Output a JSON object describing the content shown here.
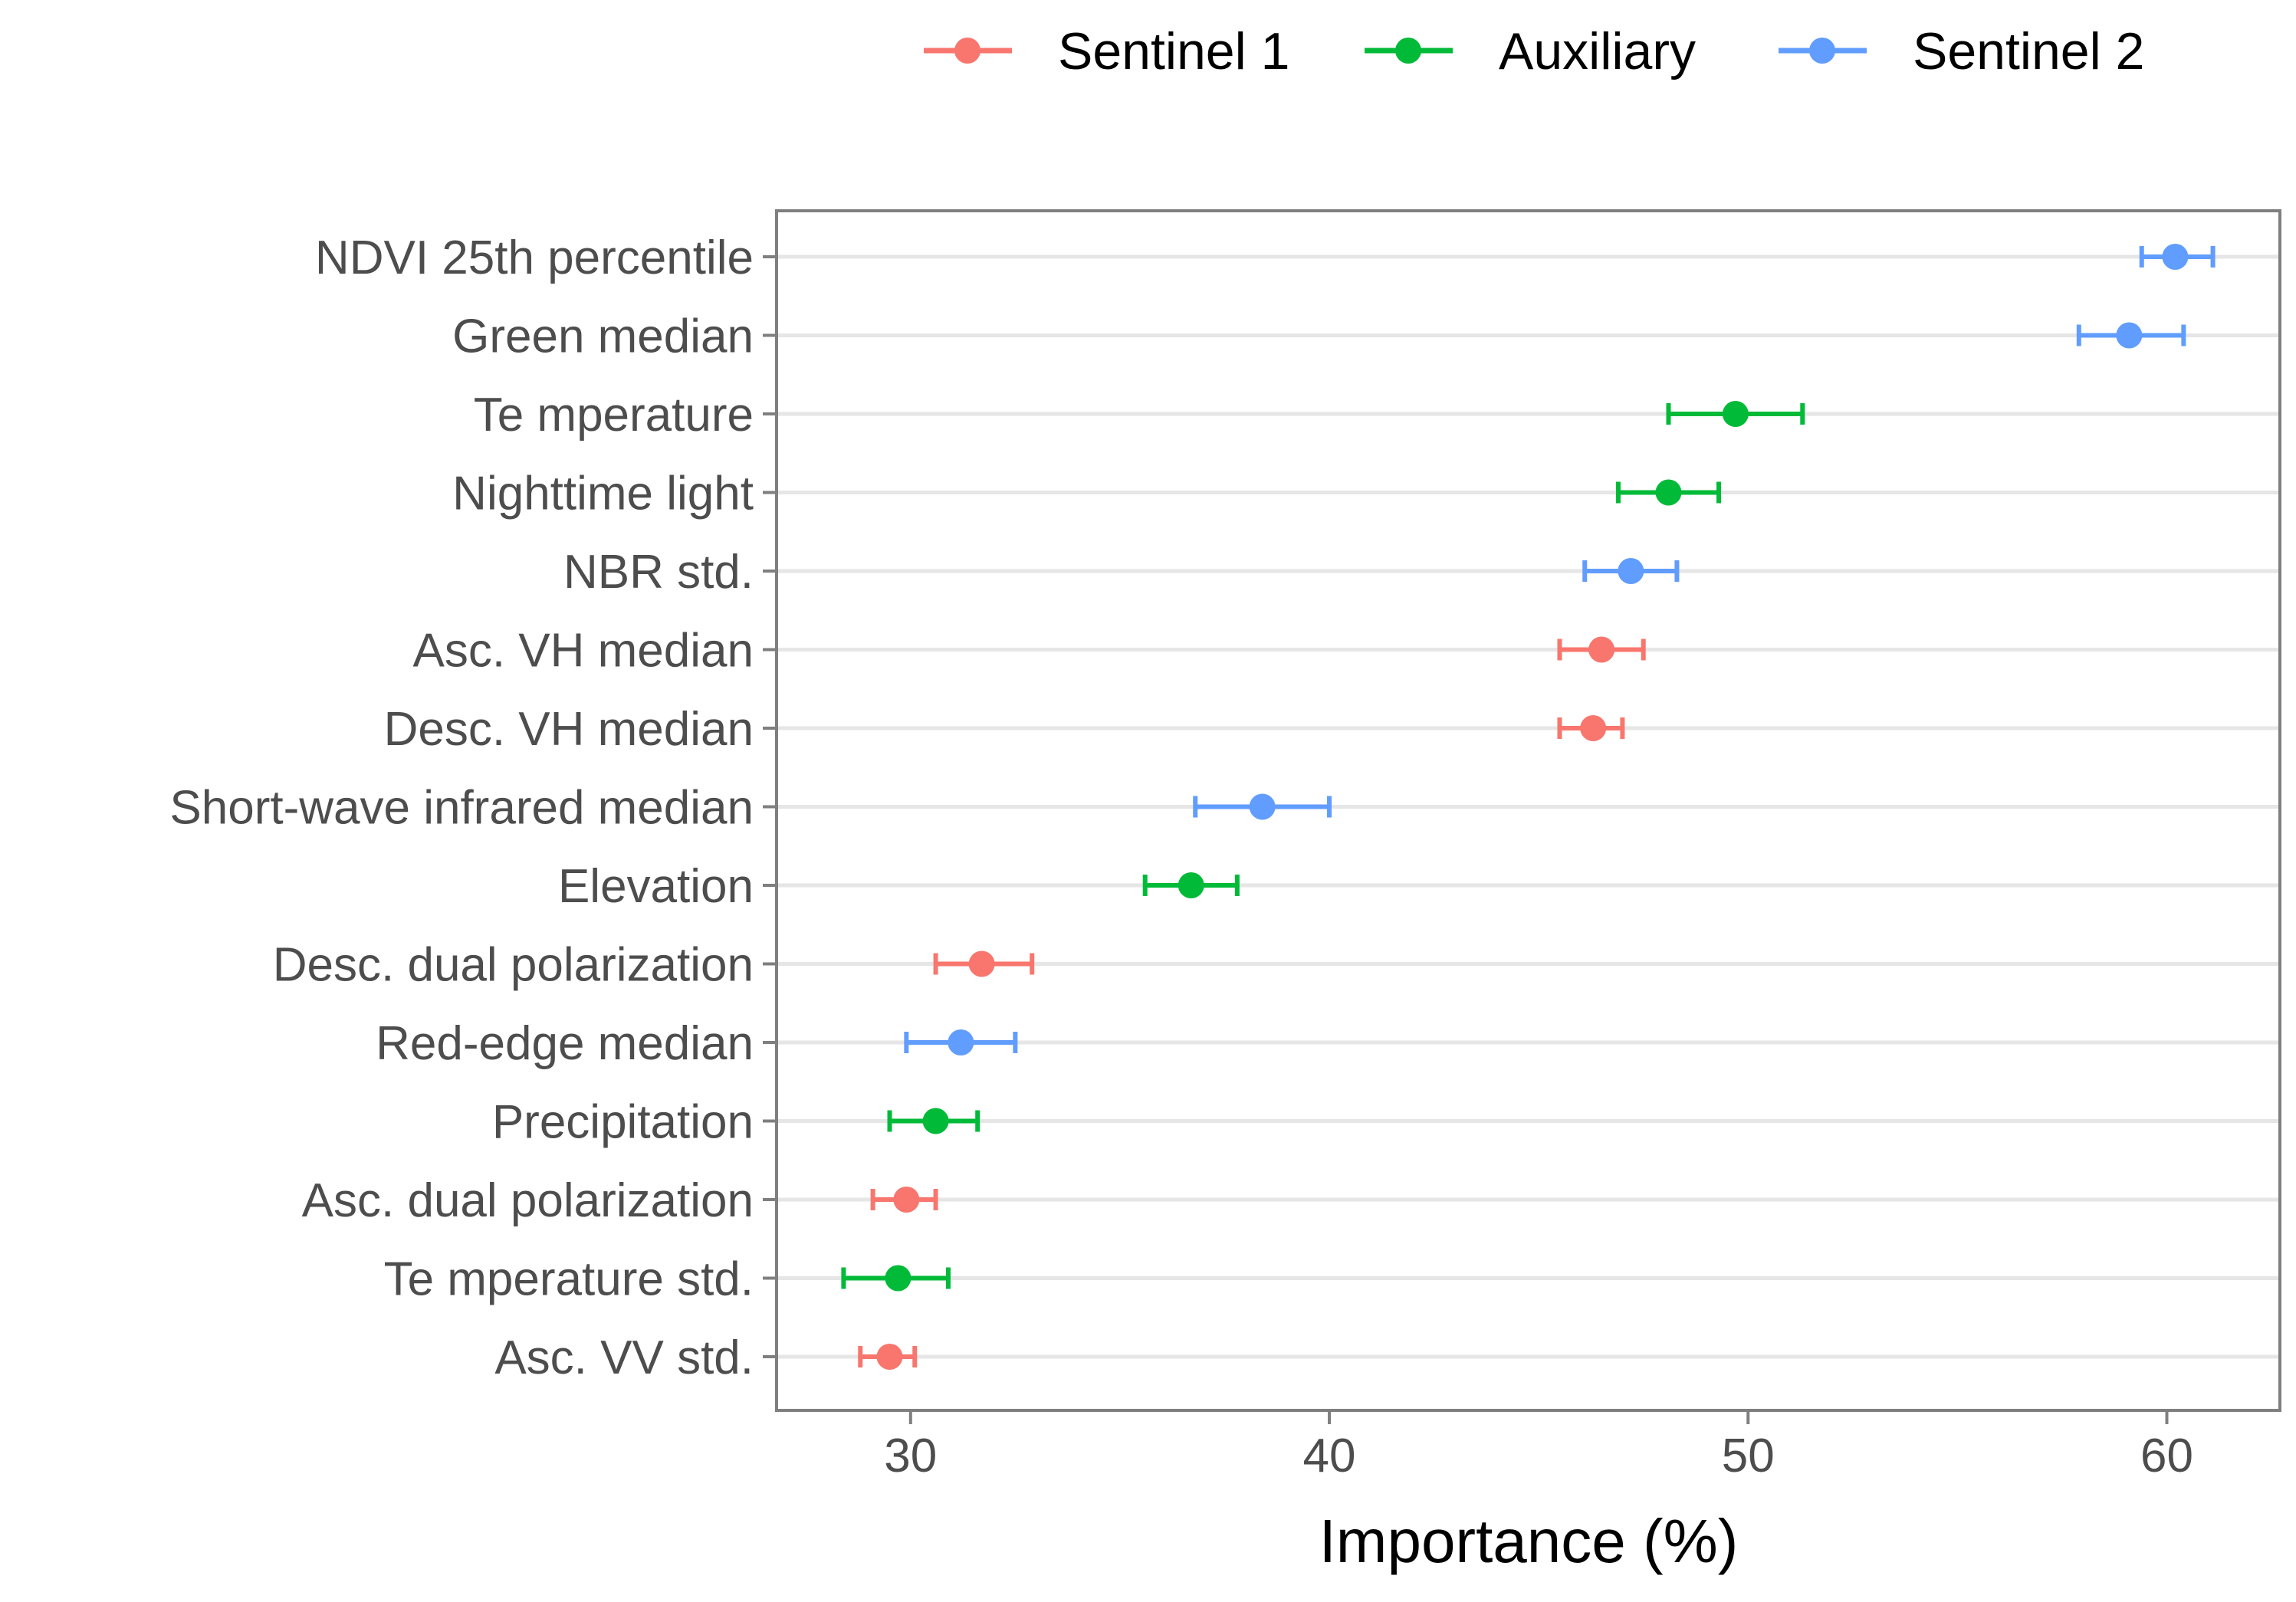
{
  "colors": {
    "Sentinel 1": "#F8766D",
    "Auxiliary": "#00BA38",
    "Sentinel 2": "#619CFF",
    "grid": "#e6e6e6",
    "panel_border": "#7f7f7f",
    "text": "#4d4d4d",
    "title_text": "#000000"
  },
  "chart_data": {
    "type": "dot-with-error-bars",
    "title": "",
    "xlabel": "Importance (%)",
    "ylabel": "",
    "xlim": [
      26.8,
      62.7
    ],
    "xticks": [
      30,
      40,
      50,
      60
    ],
    "grid": "horizontal",
    "legend": {
      "position": "top-right",
      "entries": [
        "Sentinel 1",
        "Auxiliary",
        "Sentinel 2"
      ]
    },
    "points": [
      {
        "label": "NDVI 25th percentile",
        "group": "Sentinel 2",
        "value": 60.2,
        "low": 59.4,
        "high": 61.1
      },
      {
        "label": "Green median",
        "group": "Sentinel 2",
        "value": 59.1,
        "low": 57.9,
        "high": 60.4
      },
      {
        "label": "Te mperature",
        "group": "Auxiliary",
        "value": 49.7,
        "low": 48.1,
        "high": 51.3
      },
      {
        "label": "Nighttime light",
        "group": "Auxiliary",
        "value": 48.1,
        "low": 46.9,
        "high": 49.3
      },
      {
        "label": "NBR std.",
        "group": "Sentinel 2",
        "value": 47.2,
        "low": 46.1,
        "high": 48.3
      },
      {
        "label": "Asc. VH median",
        "group": "Sentinel 1",
        "value": 46.5,
        "low": 45.5,
        "high": 47.5
      },
      {
        "label": "Desc. VH median",
        "group": "Sentinel 1",
        "value": 46.3,
        "low": 45.5,
        "high": 47.0
      },
      {
        "label": "Short-wave infrared median",
        "group": "Sentinel 2",
        "value": 38.4,
        "low": 36.8,
        "high": 40.0
      },
      {
        "label": "Elevation",
        "group": "Auxiliary",
        "value": 36.7,
        "low": 35.6,
        "high": 37.8
      },
      {
        "label": "Desc. dual polarization",
        "group": "Sentinel 1",
        "value": 31.7,
        "low": 30.6,
        "high": 32.9
      },
      {
        "label": "Red-edge median",
        "group": "Sentinel 2",
        "value": 31.2,
        "low": 29.9,
        "high": 32.5
      },
      {
        "label": "Precipitation",
        "group": "Auxiliary",
        "value": 30.6,
        "low": 29.5,
        "high": 31.6
      },
      {
        "label": "Asc. dual polarization",
        "group": "Sentinel 1",
        "value": 29.9,
        "low": 29.1,
        "high": 30.6
      },
      {
        "label": "Te mperature std.",
        "group": "Auxiliary",
        "value": 29.7,
        "low": 28.4,
        "high": 30.9
      },
      {
        "label": "Asc. VV std.",
        "group": "Sentinel 1",
        "value": 29.5,
        "low": 28.8,
        "high": 30.1
      }
    ]
  }
}
